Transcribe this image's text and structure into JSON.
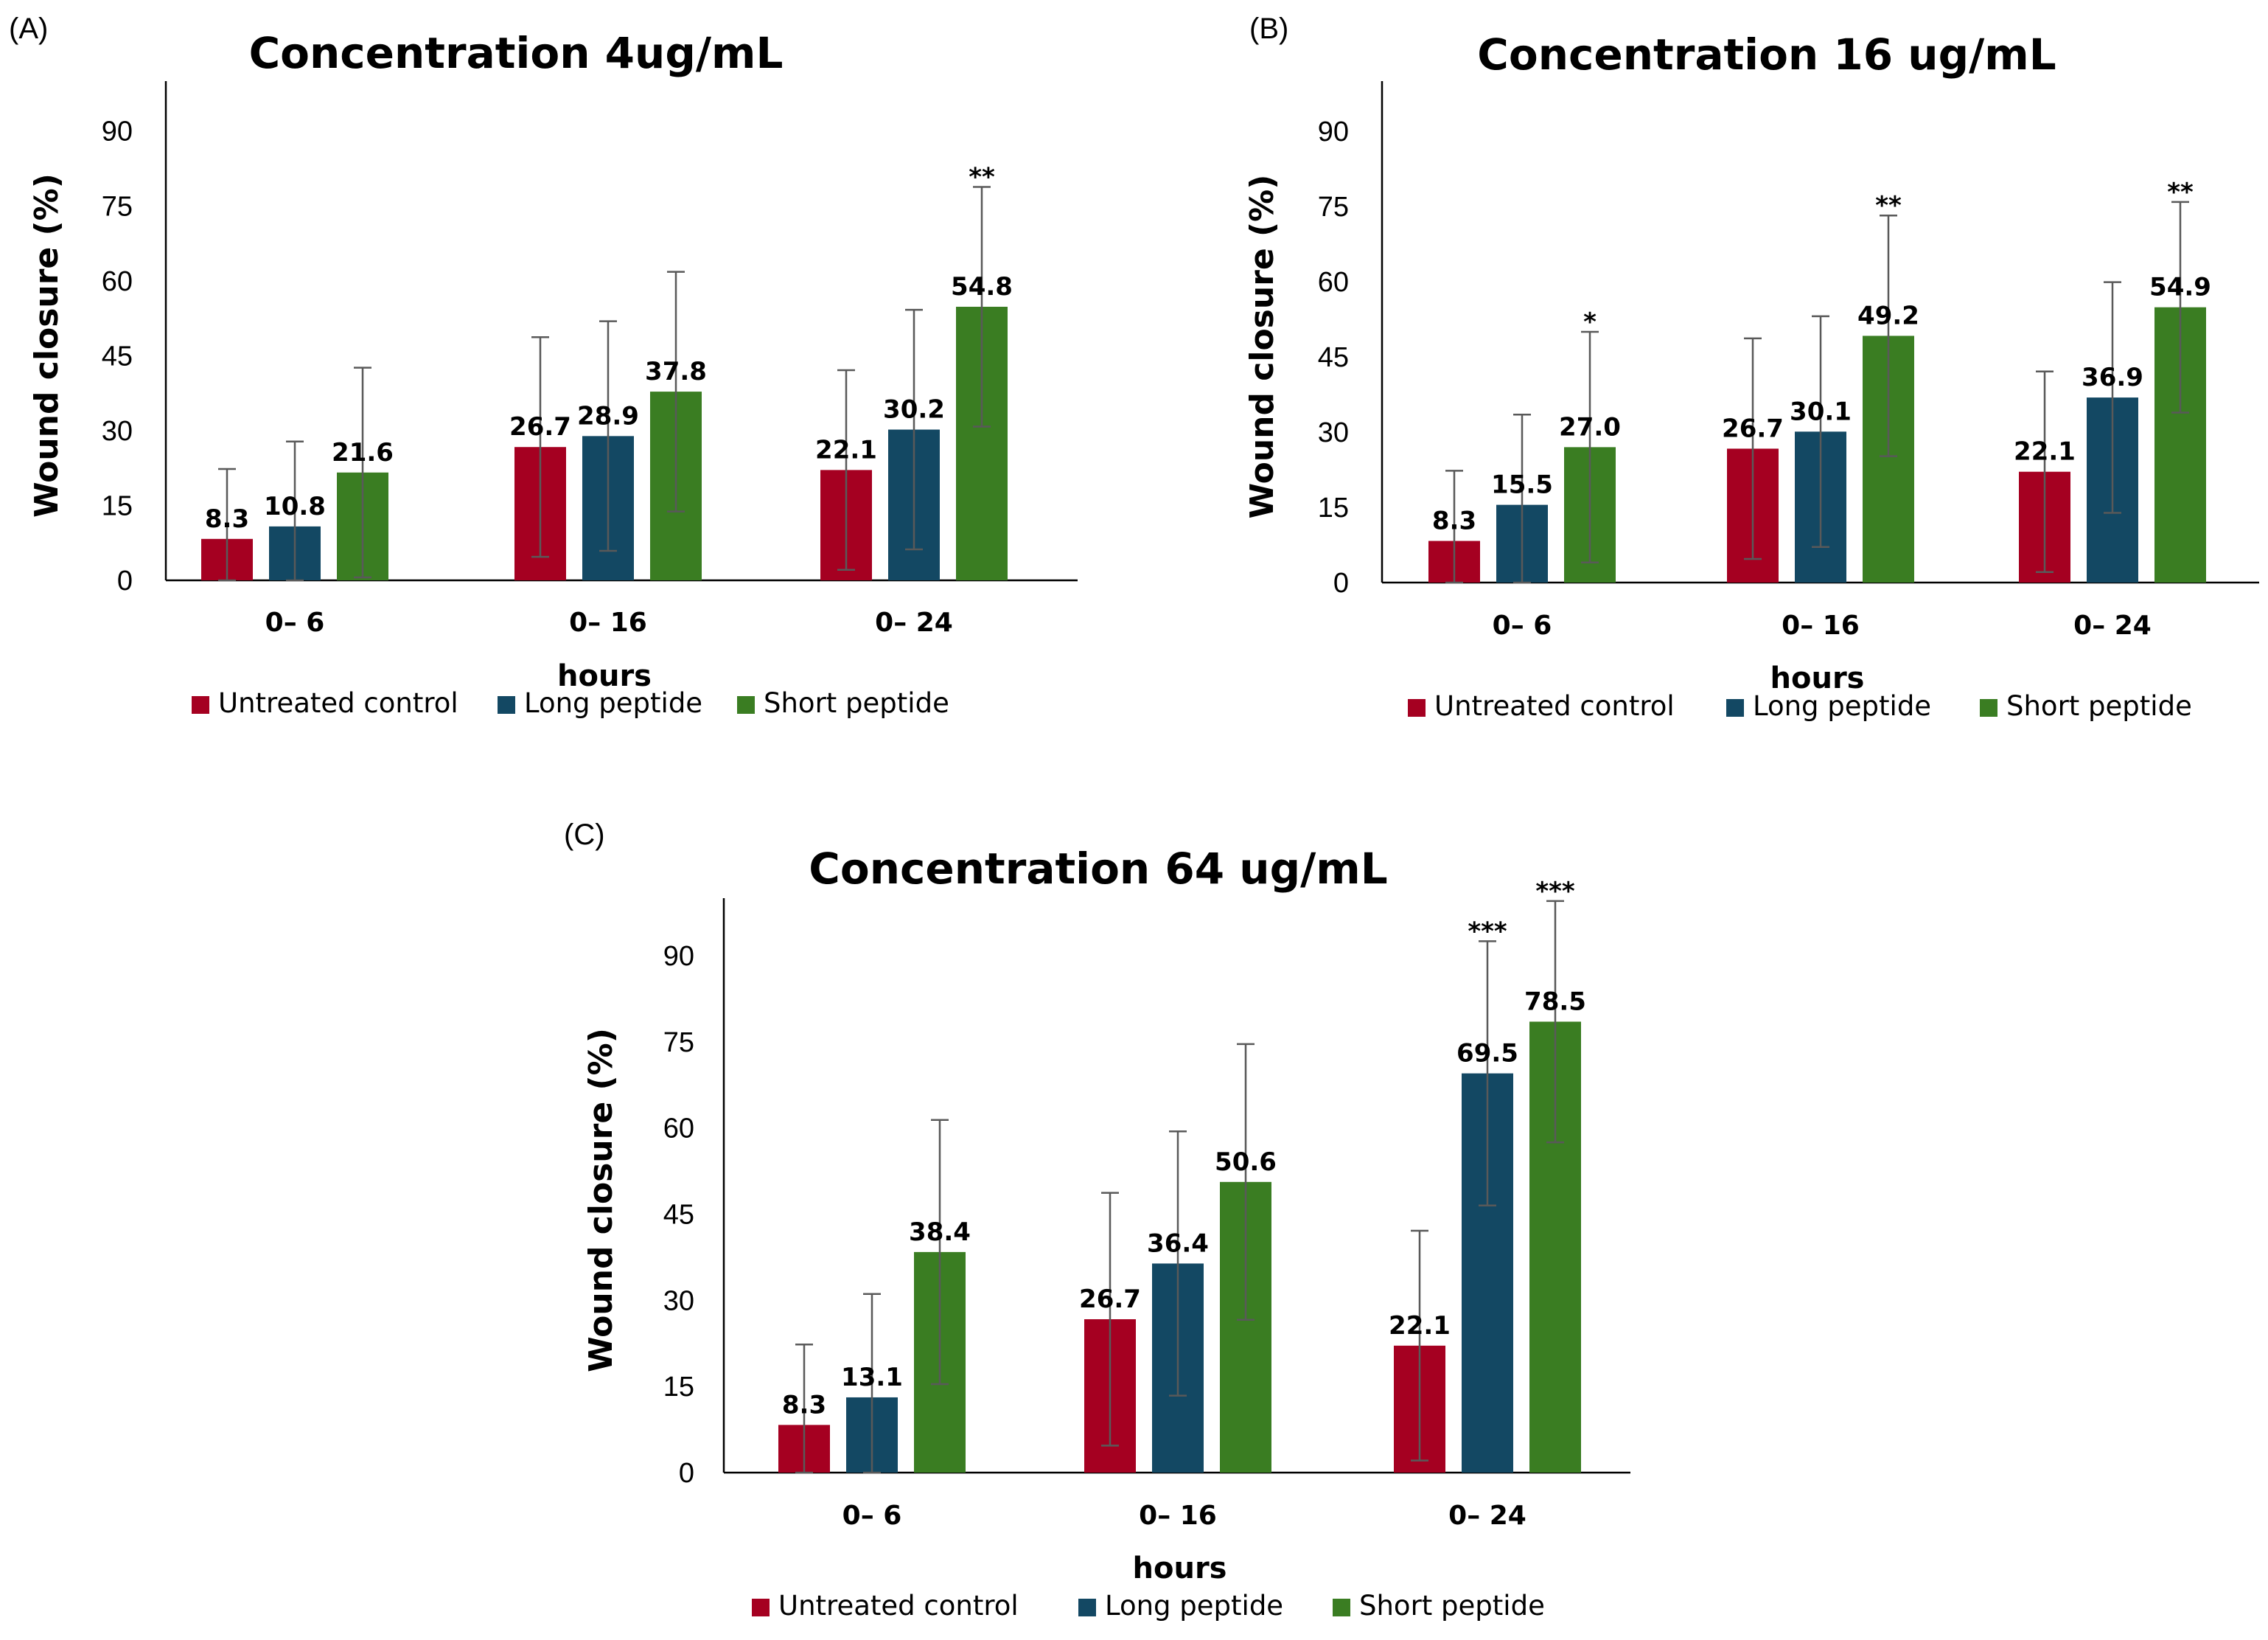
{
  "colors": {
    "untreated": "#a50021",
    "long": "#134863",
    "short": "#3a7d22"
  },
  "chart_data": [
    {
      "type": "bar",
      "panel": "(A)",
      "title": "Concentration  4ug/mL",
      "xlabel": "hours",
      "ylabel": "Wound closure (%)",
      "ylim": [
        0,
        100
      ],
      "yticks": [
        0,
        15,
        30,
        45,
        60,
        75,
        90
      ],
      "categories": [
        "0– 6",
        "0– 16",
        "0– 24"
      ],
      "series": [
        {
          "name": "Untreated control",
          "key": "untreated",
          "values": [
            8.3,
            26.7,
            22.1
          ],
          "labels": [
            "8.3",
            "26.7",
            "22.1"
          ],
          "errors": [
            14,
            22,
            20
          ],
          "sig": [
            "",
            "",
            ""
          ]
        },
        {
          "name": "Long peptide",
          "key": "long",
          "values": [
            10.8,
            28.9,
            30.2
          ],
          "labels": [
            "10.8",
            "28.9",
            "30.2"
          ],
          "errors": [
            17,
            23,
            24
          ],
          "sig": [
            "",
            "",
            ""
          ]
        },
        {
          "name": "Short peptide",
          "key": "short",
          "values": [
            21.6,
            37.8,
            54.8
          ],
          "labels": [
            "21.6",
            "37.8",
            "54.8"
          ],
          "errors": [
            21,
            24,
            24
          ],
          "sig": [
            "",
            "",
            "**"
          ]
        }
      ],
      "legend": [
        "Untreated control",
        "Long peptide",
        "Short peptide"
      ]
    },
    {
      "type": "bar",
      "panel": "(B)",
      "title": "Concentration 16 ug/mL",
      "xlabel": "hours",
      "ylabel": "Wound closure (%)",
      "ylim": [
        0,
        100
      ],
      "yticks": [
        0,
        15,
        30,
        45,
        60,
        75,
        90
      ],
      "categories": [
        "0– 6",
        "0– 16",
        "0– 24"
      ],
      "series": [
        {
          "name": "Untreated control",
          "key": "untreated",
          "values": [
            8.3,
            26.7,
            22.1
          ],
          "labels": [
            "8.3",
            "26.7",
            "22.1"
          ],
          "errors": [
            14,
            22,
            20
          ],
          "sig": [
            "",
            "",
            ""
          ]
        },
        {
          "name": "Long peptide",
          "key": "long",
          "values": [
            15.5,
            30.1,
            36.9
          ],
          "labels": [
            "15.5",
            "30.1",
            "36.9"
          ],
          "errors": [
            18,
            23,
            23
          ],
          "sig": [
            "",
            "",
            ""
          ]
        },
        {
          "name": "Short peptide",
          "key": "short",
          "values": [
            27.0,
            49.2,
            54.9
          ],
          "labels": [
            "27.0",
            "49.2",
            "54.9"
          ],
          "errors": [
            23,
            24,
            21
          ],
          "sig": [
            "*",
            "**",
            "**"
          ]
        }
      ],
      "legend": [
        "Untreated control",
        "Long peptide",
        "Short peptide"
      ]
    },
    {
      "type": "bar",
      "panel": "(C)",
      "title": "Concentration  64 ug/mL",
      "xlabel": "hours",
      "ylabel": "Wound closure (%)",
      "ylim": [
        0,
        100
      ],
      "yticks": [
        0,
        15,
        30,
        45,
        60,
        75,
        90
      ],
      "categories": [
        "0– 6",
        "0– 16",
        "0– 24"
      ],
      "series": [
        {
          "name": "Untreated control",
          "key": "untreated",
          "values": [
            8.3,
            26.7,
            22.1
          ],
          "labels": [
            "8.3",
            "26.7",
            "22.1"
          ],
          "errors": [
            14,
            22,
            20
          ],
          "sig": [
            "",
            "",
            ""
          ]
        },
        {
          "name": "Long peptide",
          "key": "long",
          "values": [
            13.1,
            36.4,
            69.5
          ],
          "labels": [
            "13.1",
            "36.4",
            "69.5"
          ],
          "errors": [
            18,
            23,
            23
          ],
          "sig": [
            "",
            "",
            "***"
          ]
        },
        {
          "name": "Short peptide",
          "key": "short",
          "values": [
            38.4,
            50.6,
            78.5
          ],
          "labels": [
            "38.4",
            "50.6",
            "78.5"
          ],
          "errors": [
            23,
            24,
            21
          ],
          "sig": [
            "",
            "",
            "***"
          ]
        }
      ],
      "legend": [
        "Untreated control",
        "Long peptide",
        "Short peptide"
      ]
    }
  ]
}
